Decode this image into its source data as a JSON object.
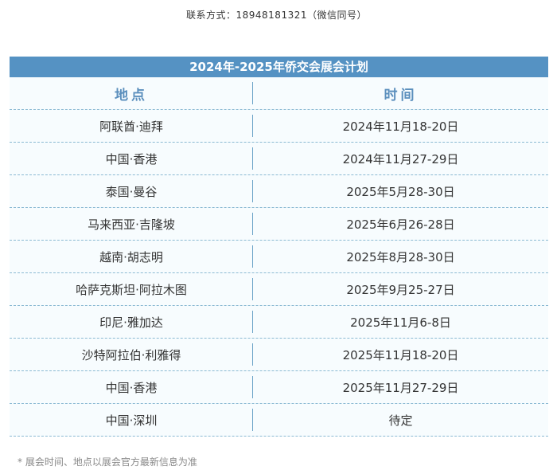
{
  "contact": "联系方式：18948181321（微信同号）",
  "table": {
    "title": "2024年-2025年侨交会展会计划",
    "headers": [
      "地点",
      "时间"
    ],
    "rows": [
      {
        "place": "阿联酋·迪拜",
        "time": "2024年11月18-20日"
      },
      {
        "place": "中国·香港",
        "time": "2024年11月27-29日"
      },
      {
        "place": "泰国·曼谷",
        "time": "2025年5月28-30日"
      },
      {
        "place": "马来西亚·吉隆坡",
        "time": "2025年6月26-28日"
      },
      {
        "place": "越南·胡志明",
        "time": "2025年8月28-30日"
      },
      {
        "place": "哈萨克斯坦·阿拉木图",
        "time": "2025年9月25-27日"
      },
      {
        "place": "印尼·雅加达",
        "time": "2025年11月6-8日"
      },
      {
        "place": "沙特阿拉伯·利雅得",
        "time": "2025年11月18-20日"
      },
      {
        "place": "中国·香港",
        "time": "2025年11月27-29日"
      },
      {
        "place": "中国·深圳",
        "time": "待定"
      }
    ]
  },
  "note": "* 展会时间、地点以展会官方最新信息为准",
  "colors": {
    "header_bg": "#5592c3",
    "header_text": "#5b8fbd",
    "row_bg": "#f7fcfe"
  }
}
